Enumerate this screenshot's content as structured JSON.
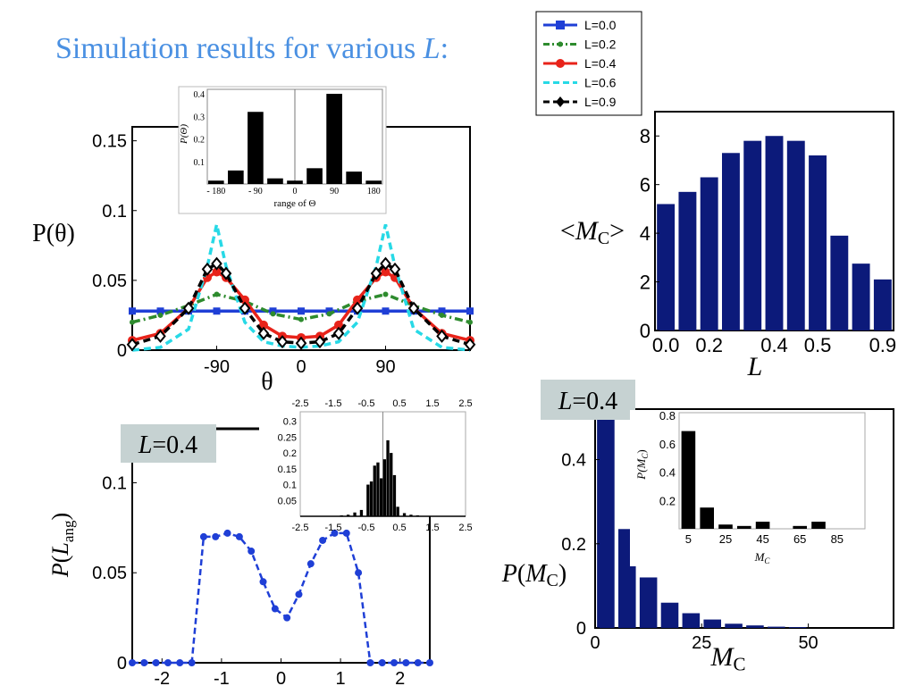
{
  "title": {
    "main": "Simulation results for various ",
    "var": "L",
    "colon": ":"
  },
  "legend": {
    "entries": [
      {
        "label": "L=0.0",
        "color": "#1f3fd6",
        "style": "solid",
        "marker": "square"
      },
      {
        "label": "L=0.2",
        "color": "#2e8b2e",
        "style": "dashdot",
        "marker": "dot"
      },
      {
        "label": "L=0.4",
        "color": "#e8231a",
        "style": "solid",
        "marker": "circle"
      },
      {
        "label": "L=0.6",
        "color": "#27d9e6",
        "style": "dashed",
        "marker": "none"
      },
      {
        "label": "L=0.9",
        "color": "#000000",
        "style": "dashed",
        "marker": "diamond"
      }
    ]
  },
  "labels": {
    "theta_ylabel": "P(θ)",
    "theta_xlabel": "θ",
    "mc_ylabel": "<MC>",
    "mc_xlabel": "L",
    "lang_ylabel": "P(Lang)",
    "pmc_ylabel": "P(MC)",
    "pmc_xlabel": "MC",
    "l04_badge": "L=0.4",
    "inset1_ylabel": "P(Θ)",
    "inset1_xlabel": "range of Θ",
    "inset3_ylabel": "P(MC)",
    "inset3_xlabel": "MC"
  },
  "colors": {
    "title": "#4a90e2",
    "bar_blue": "#0c1a7a",
    "badge_bg": "#c6d2d2",
    "lang_line": "#1f3fd6"
  },
  "chart_data": [
    {
      "id": "theta",
      "type": "line",
      "xlabel": "θ",
      "ylabel": "P(θ)",
      "xlim": [
        -180,
        180
      ],
      "ylim": [
        0,
        0.16
      ],
      "xticks": [
        -90,
        0,
        90
      ],
      "yticks": [
        0,
        0.05,
        0.1,
        0.15
      ],
      "xtick_labels": [
        "-90",
        "0",
        "90"
      ],
      "ytick_labels": [
        "0",
        "0.05",
        "0.1",
        "0.15"
      ],
      "series": [
        {
          "name": "L=0.0",
          "x": [
            -180,
            -150,
            -120,
            -90,
            -60,
            -30,
            0,
            30,
            60,
            90,
            120,
            150,
            180
          ],
          "y": [
            0.028,
            0.028,
            0.028,
            0.028,
            0.028,
            0.028,
            0.028,
            0.028,
            0.028,
            0.028,
            0.028,
            0.028,
            0.028
          ]
        },
        {
          "name": "L=0.2",
          "x": [
            -180,
            -150,
            -120,
            -90,
            -60,
            -30,
            0,
            30,
            60,
            90,
            120,
            150,
            180
          ],
          "y": [
            0.02,
            0.025,
            0.032,
            0.04,
            0.035,
            0.026,
            0.022,
            0.026,
            0.035,
            0.04,
            0.032,
            0.025,
            0.02
          ]
        },
        {
          "name": "L=0.4",
          "x": [
            -180,
            -150,
            -120,
            -100,
            -90,
            -80,
            -60,
            -40,
            -20,
            0,
            20,
            40,
            60,
            80,
            90,
            100,
            120,
            150,
            180
          ],
          "y": [
            0.007,
            0.012,
            0.03,
            0.052,
            0.056,
            0.052,
            0.036,
            0.018,
            0.01,
            0.009,
            0.01,
            0.018,
            0.036,
            0.052,
            0.056,
            0.052,
            0.03,
            0.012,
            0.007
          ]
        },
        {
          "name": "L=0.6",
          "x": [
            -180,
            -150,
            -120,
            -100,
            -90,
            -80,
            -60,
            -40,
            -20,
            0,
            20,
            40,
            60,
            80,
            90,
            100,
            120,
            150,
            180
          ],
          "y": [
            0,
            0.002,
            0.015,
            0.06,
            0.09,
            0.06,
            0.02,
            0.006,
            0.003,
            0.002,
            0.003,
            0.006,
            0.02,
            0.06,
            0.09,
            0.06,
            0.015,
            0.002,
            0
          ]
        },
        {
          "name": "L=0.9",
          "x": [
            -180,
            -150,
            -120,
            -100,
            -90,
            -80,
            -60,
            -40,
            -20,
            0,
            20,
            40,
            60,
            80,
            90,
            100,
            120,
            150,
            180
          ],
          "y": [
            0.004,
            0.01,
            0.03,
            0.058,
            0.062,
            0.055,
            0.03,
            0.012,
            0.006,
            0.005,
            0.006,
            0.012,
            0.03,
            0.055,
            0.062,
            0.058,
            0.03,
            0.01,
            0.004
          ]
        }
      ]
    },
    {
      "id": "theta_inset",
      "type": "bar",
      "xlabel": "range of Θ",
      "ylabel": "P(Θ)",
      "xlim": [
        -200,
        200
      ],
      "ylim": [
        0,
        0.42
      ],
      "x": [
        -180,
        -135,
        -90,
        -45,
        0,
        45,
        90,
        135,
        180
      ],
      "values": [
        0.015,
        0.06,
        0.32,
        0.025,
        0.015,
        0.07,
        0.4,
        0.055,
        0.015
      ],
      "xticks": [
        -180,
        -90,
        0,
        90,
        180
      ],
      "xtick_labels": [
        "- 180",
        "- 90",
        "0",
        "90",
        "180"
      ],
      "yticks": [
        0.1,
        0.2,
        0.3,
        0.4
      ],
      "ytick_labels": [
        "0.1",
        "0.2",
        "0.3",
        "0.4"
      ]
    },
    {
      "id": "mc_vs_L",
      "type": "bar",
      "xlabel": "L",
      "ylabel": "<MC>",
      "ylim": [
        0,
        9
      ],
      "values": [
        5.2,
        5.7,
        6.3,
        7.3,
        7.8,
        8.0,
        7.8,
        7.2,
        3.9,
        2.75,
        2.1
      ],
      "yticks": [
        0,
        2,
        4,
        6,
        8
      ],
      "ytick_labels": [
        "0",
        "2",
        "4",
        "6",
        "8"
      ],
      "xtick_labels": [
        {
          "pos": 0,
          "text": "0.0"
        },
        {
          "pos": 2,
          "text": "0.2"
        },
        {
          "pos": 5,
          "text": "0.4"
        },
        {
          "pos": 7,
          "text": "0.5"
        },
        {
          "pos": 10,
          "text": "0.9"
        }
      ]
    },
    {
      "id": "lang",
      "type": "line",
      "xlabel": "",
      "ylabel": "P(Lang)",
      "xlim": [
        -2.5,
        2.5
      ],
      "ylim": [
        0,
        0.13
      ],
      "xticks": [
        -2,
        -1,
        0,
        1,
        2
      ],
      "xtick_labels": [
        "-2",
        "-1",
        "0",
        "1",
        "2"
      ],
      "yticks": [
        0,
        0.05,
        0.1
      ],
      "ytick_labels": [
        "0",
        "0.05",
        "0.1"
      ],
      "series": [
        {
          "name": "",
          "x": [
            -2.5,
            -2.3,
            -2.1,
            -1.9,
            -1.7,
            -1.5,
            -1.3,
            -1.1,
            -0.9,
            -0.7,
            -0.5,
            -0.3,
            -0.1,
            0.1,
            0.3,
            0.5,
            0.7,
            0.9,
            1.1,
            1.3,
            1.5,
            1.7,
            1.9,
            2.1,
            2.3,
            2.5
          ],
          "y": [
            0,
            0,
            0,
            0,
            0,
            0,
            0.07,
            0.07,
            0.072,
            0.07,
            0.062,
            0.045,
            0.03,
            0.025,
            0.038,
            0.055,
            0.068,
            0.072,
            0.072,
            0.05,
            0,
            0,
            0,
            0,
            0,
            0
          ]
        }
      ]
    },
    {
      "id": "lang_inset",
      "type": "bar",
      "xlim": [
        -2.5,
        2.5
      ],
      "ylim": [
        0,
        0.33
      ],
      "x": [
        -1.25,
        -1.05,
        -0.85,
        -0.65,
        -0.45,
        -0.35,
        -0.25,
        -0.15,
        -0.05,
        0.05,
        0.15,
        0.25,
        0.35,
        0.45,
        0.65,
        0.85,
        1.05
      ],
      "values": [
        0.003,
        0.005,
        0.012,
        0.02,
        0.1,
        0.11,
        0.16,
        0.17,
        0.12,
        0.18,
        0.24,
        0.2,
        0.13,
        0.03,
        0.01,
        0.005,
        0.003
      ],
      "xtick_labels": [
        "-2.5",
        "-1.5",
        "-0.5",
        "0.5",
        "1.5",
        "2.5"
      ],
      "xticks": [
        -2.5,
        -1.5,
        -0.5,
        0.5,
        1.5,
        2.5
      ],
      "yticks": [
        0.05,
        0.1,
        0.15,
        0.2,
        0.25,
        0.3
      ],
      "ytick_labels": [
        "0.05",
        "0.1",
        "0.15",
        "0.2",
        "0.25",
        "0.3"
      ]
    },
    {
      "id": "p_mc",
      "type": "bar",
      "xlabel": "MC",
      "ylabel": "P(MC)",
      "xlim": [
        0,
        70
      ],
      "ylim": [
        0,
        0.52
      ],
      "x": [
        2.5,
        7.5,
        12.5,
        17.5,
        22.5,
        27.5,
        32.5,
        37.5,
        42.5,
        47.5
      ],
      "values": [
        0.51,
        0.235,
        0.12,
        0.06,
        0.035,
        0.02,
        0.01,
        0.006,
        0.003,
        0.002
      ],
      "xticks": [
        0,
        25,
        50
      ],
      "xtick_labels": [
        "0",
        "25",
        "50"
      ],
      "yticks": [
        0,
        0.2,
        0.4
      ],
      "ytick_labels": [
        "0",
        "0.2",
        "0.4"
      ]
    },
    {
      "id": "p_mc_inset",
      "type": "bar",
      "xlabel": "MC",
      "ylabel": "P(MC)",
      "xlim": [
        0,
        100
      ],
      "ylim": [
        0,
        0.82
      ],
      "x": [
        5,
        15,
        25,
        35,
        45,
        55,
        65,
        75
      ],
      "values": [
        0.69,
        0.15,
        0.03,
        0.02,
        0.05,
        0.0,
        0.02,
        0.05
      ],
      "xticks": [
        5,
        25,
        45,
        65,
        85
      ],
      "xtick_labels": [
        "5",
        "25",
        "45",
        "65",
        "85"
      ],
      "yticks": [
        0.2,
        0.4,
        0.6,
        0.8
      ],
      "ytick_labels": [
        "0.2",
        "0.4",
        "0.6",
        "0.8"
      ]
    }
  ]
}
